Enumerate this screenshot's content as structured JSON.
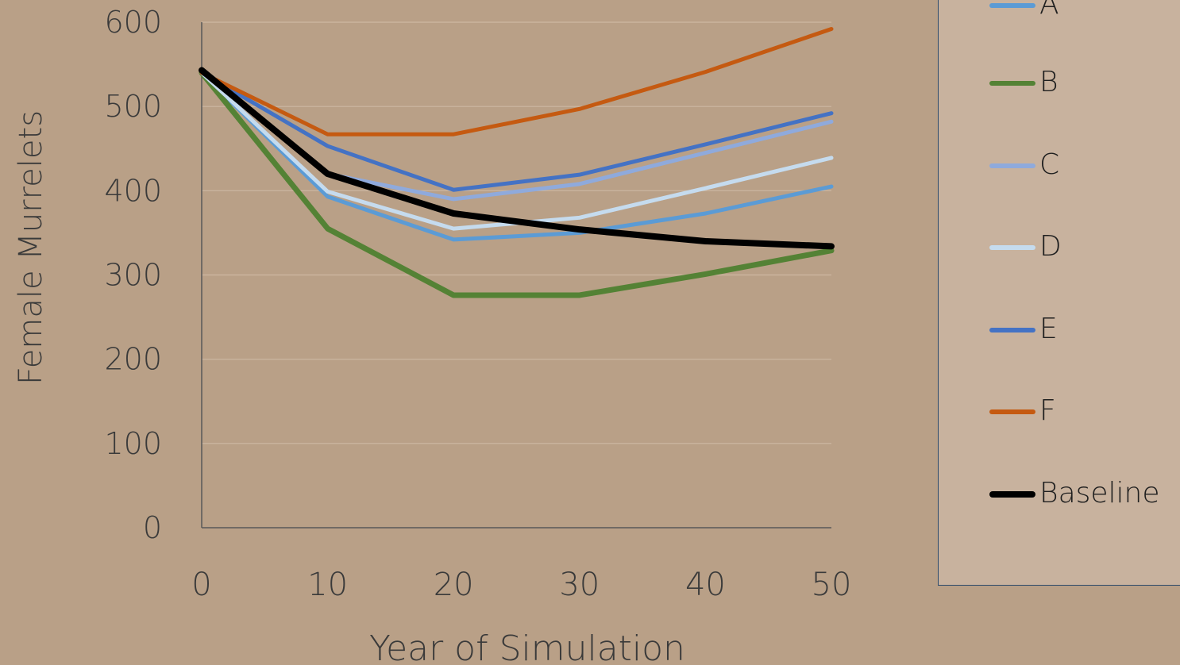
{
  "chart_data": {
    "type": "line",
    "xlabel": "Year of Simulation",
    "ylabel": "Female Murrelets",
    "x": [
      0,
      10,
      20,
      30,
      40,
      50
    ],
    "xlim": [
      0,
      50
    ],
    "ylim": [
      0,
      600
    ],
    "xticks": [
      "0",
      "10",
      "20",
      "30",
      "40",
      "50"
    ],
    "yticks": [
      "0",
      "100",
      "200",
      "300",
      "400",
      "500",
      "600"
    ],
    "grid": "horizontal",
    "legend_position": "right",
    "series": [
      {
        "name": "A",
        "color": "#5b9bd5",
        "values": [
          540,
          393,
          342,
          350,
          373,
          405
        ]
      },
      {
        "name": "B",
        "color": "#548235",
        "values": [
          540,
          355,
          276,
          276,
          301,
          329
        ]
      },
      {
        "name": "C",
        "color": "#8faadc",
        "values": [
          540,
          420,
          390,
          408,
          445,
          482
        ]
      },
      {
        "name": "D",
        "color": "#c5dbee",
        "values": [
          540,
          399,
          355,
          368,
          403,
          439
        ]
      },
      {
        "name": "E",
        "color": "#4472c4",
        "values": [
          540,
          453,
          401,
          419,
          455,
          492
        ]
      },
      {
        "name": "F",
        "color": "#c55a11",
        "values": [
          540,
          467,
          467,
          497,
          541,
          592
        ]
      },
      {
        "name": "Baseline",
        "color": "#000000",
        "values": [
          543,
          420,
          373,
          354,
          340,
          334
        ]
      }
    ]
  }
}
